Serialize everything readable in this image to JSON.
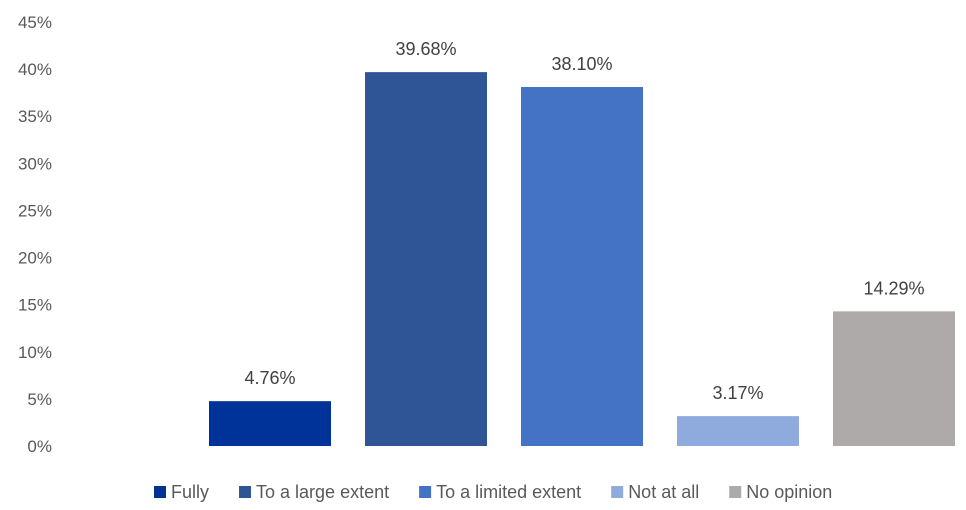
{
  "chart_data": {
    "type": "bar",
    "title": "",
    "xlabel": "",
    "ylabel": "",
    "ylim": [
      0,
      45
    ],
    "yticks": [
      "0%",
      "5%",
      "10%",
      "15%",
      "20%",
      "25%",
      "30%",
      "35%",
      "40%",
      "45%"
    ],
    "grid": false,
    "legend_position": "bottom",
    "series": [
      {
        "name": "Fully",
        "value": 4.76,
        "label": "4.76%",
        "color": "#003399"
      },
      {
        "name": "To a large extent",
        "value": 39.68,
        "label": "39.68%",
        "color": "#2F5597"
      },
      {
        "name": "To a limited extent",
        "value": 38.1,
        "label": "38.10%",
        "color": "#4472C4"
      },
      {
        "name": "Not at all",
        "value": 3.17,
        "label": "3.17%",
        "color": "#8FAADC"
      },
      {
        "name": "No opinion",
        "value": 14.29,
        "label": "14.29%",
        "color": "#AEAAAA"
      }
    ]
  }
}
